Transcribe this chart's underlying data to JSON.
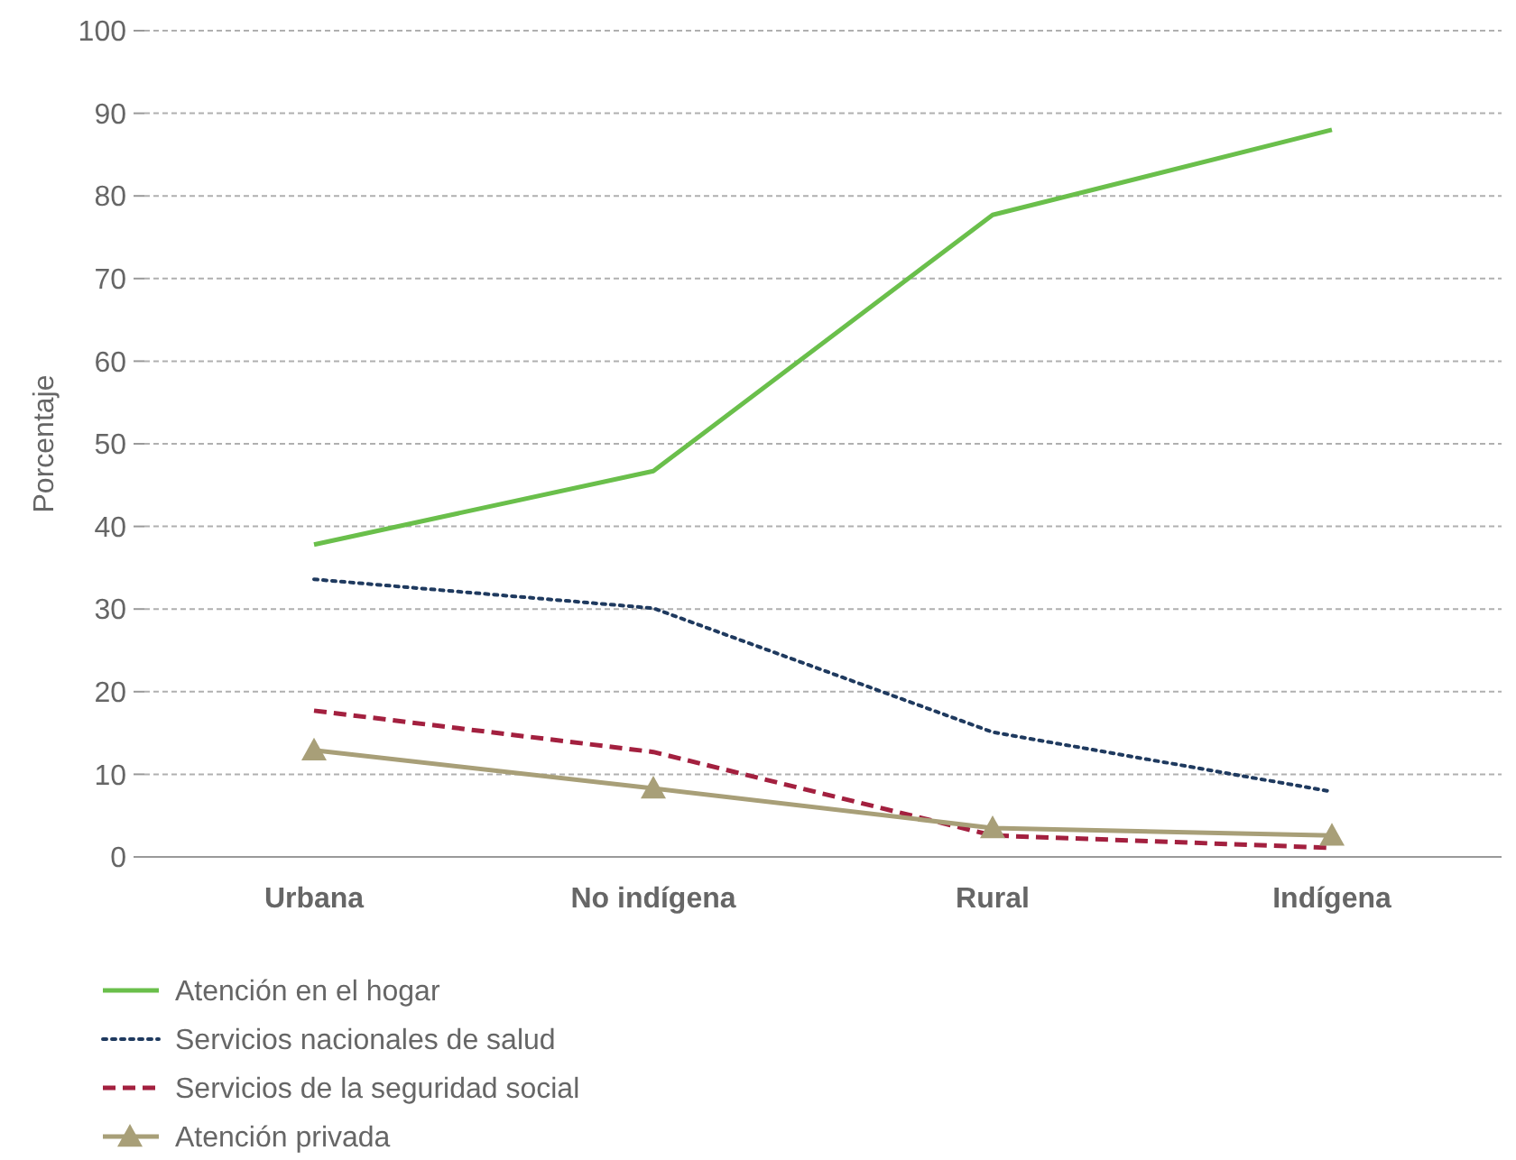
{
  "chart_data": {
    "type": "line",
    "ylabel": "Porcentaje",
    "categories": [
      "Urbana",
      "No indígena",
      "Rural",
      "Indígena"
    ],
    "series": [
      {
        "name": "Atención en el hogar",
        "color": "#6abf4b",
        "values": [
          37.8,
          46.7,
          77.7,
          88.0
        ],
        "line_style": "solid"
      },
      {
        "name": "Servicios nacionales de salud",
        "color": "#1f3a5f",
        "values": [
          33.6,
          30.1,
          15.1,
          7.9
        ],
        "line_style": "dotted"
      },
      {
        "name": "Servicios de la seguridad social",
        "color": "#a3203f",
        "values": [
          17.7,
          12.7,
          2.6,
          1.1
        ],
        "line_style": "dashed"
      },
      {
        "name": "Atención privada",
        "color": "#a89f78",
        "values": [
          12.9,
          8.3,
          3.5,
          2.6
        ],
        "line_style": "solid",
        "marker": "triangle"
      }
    ],
    "ylim": [
      0,
      100
    ],
    "yticks": [
      0,
      10,
      20,
      30,
      40,
      50,
      60,
      70,
      80,
      90,
      100
    ],
    "grid": "y",
    "legend": "bottom left"
  }
}
